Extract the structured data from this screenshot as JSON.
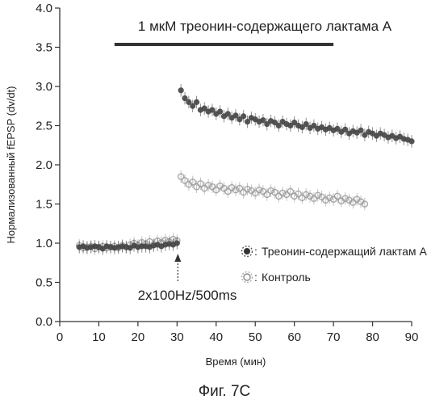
{
  "chart_data": {
    "type": "scatter",
    "title": "",
    "caption": "Фиг. 7C",
    "xlabel": "Время (мин)",
    "ylabel": "Нормализованный fEPSP (dv/dt)",
    "xlim": [
      0,
      90
    ],
    "ylim": [
      0.0,
      4.0
    ],
    "x_ticks": [
      0,
      10,
      20,
      30,
      40,
      50,
      60,
      70,
      80,
      90
    ],
    "y_ticks": [
      "0.0",
      "0.5",
      "1.0",
      "1.5",
      "2.0",
      "2.5",
      "3.0",
      "3.5",
      "4.0"
    ],
    "treatment_bar": {
      "label": "1 мкМ треонин-содержащего лактама А",
      "x_start": 14,
      "x_end": 70
    },
    "stimulus": {
      "label": "2x100Hz/500ms",
      "x": 30
    },
    "legend": [
      "Треонин-содержащий лактам А",
      "Контроль"
    ],
    "series": [
      {
        "name": "Треонин-содержащий лактам А",
        "marker": "filled",
        "color": "#444444",
        "x": [
          5,
          6,
          7,
          8,
          9,
          10,
          11,
          12,
          13,
          14,
          15,
          16,
          17,
          18,
          19,
          20,
          21,
          22,
          23,
          24,
          25,
          26,
          27,
          28,
          29,
          30,
          31,
          32,
          33,
          34,
          35,
          36,
          37,
          38,
          39,
          40,
          41,
          42,
          43,
          44,
          45,
          46,
          47,
          48,
          49,
          50,
          51,
          52,
          53,
          54,
          55,
          56,
          57,
          58,
          59,
          60,
          61,
          62,
          63,
          64,
          65,
          66,
          67,
          68,
          69,
          70,
          71,
          72,
          73,
          74,
          75,
          76,
          77,
          78,
          79,
          80,
          81,
          82,
          83,
          84,
          85,
          86,
          87,
          88,
          89,
          90
        ],
        "y": [
          0.95,
          0.96,
          0.94,
          0.95,
          0.96,
          0.95,
          0.93,
          0.96,
          0.95,
          0.94,
          0.95,
          0.96,
          0.95,
          0.94,
          0.97,
          0.95,
          0.96,
          0.96,
          0.95,
          0.97,
          0.98,
          0.96,
          0.98,
          0.99,
          0.98,
          1.0,
          2.95,
          2.85,
          2.8,
          2.75,
          2.8,
          2.7,
          2.72,
          2.68,
          2.7,
          2.65,
          2.68,
          2.62,
          2.65,
          2.6,
          2.63,
          2.58,
          2.62,
          2.55,
          2.6,
          2.58,
          2.55,
          2.57,
          2.52,
          2.56,
          2.54,
          2.5,
          2.55,
          2.52,
          2.5,
          2.54,
          2.5,
          2.48,
          2.52,
          2.47,
          2.5,
          2.46,
          2.48,
          2.45,
          2.47,
          2.44,
          2.46,
          2.42,
          2.45,
          2.4,
          2.43,
          2.41,
          2.44,
          2.38,
          2.42,
          2.4,
          2.37,
          2.4,
          2.38,
          2.35,
          2.37,
          2.34,
          2.36,
          2.33,
          2.32,
          2.3
        ]
      },
      {
        "name": "Контроль",
        "marker": "hollow",
        "color": "#9a9a9a",
        "x": [
          5,
          6,
          7,
          8,
          9,
          10,
          11,
          12,
          13,
          14,
          15,
          16,
          17,
          18,
          19,
          20,
          21,
          22,
          23,
          24,
          25,
          26,
          27,
          28,
          29,
          30,
          31,
          32,
          33,
          34,
          35,
          36,
          37,
          38,
          39,
          40,
          41,
          42,
          43,
          44,
          45,
          46,
          47,
          48,
          49,
          50,
          51,
          52,
          53,
          54,
          55,
          56,
          57,
          58,
          59,
          60,
          61,
          62,
          63,
          64,
          65,
          66,
          67,
          68,
          69,
          70,
          71,
          72,
          73,
          74,
          75,
          76,
          77,
          78
        ],
        "y": [
          0.97,
          0.94,
          0.95,
          0.96,
          0.93,
          0.95,
          0.96,
          0.94,
          0.95,
          0.96,
          0.94,
          0.97,
          0.95,
          0.98,
          1.0,
          0.97,
          1.01,
          0.99,
          1.02,
          0.98,
          1.03,
          1.01,
          1.04,
          1.02,
          1.05,
          1.03,
          1.85,
          1.8,
          1.75,
          1.78,
          1.72,
          1.76,
          1.7,
          1.74,
          1.72,
          1.68,
          1.73,
          1.7,
          1.66,
          1.71,
          1.68,
          1.7,
          1.65,
          1.69,
          1.67,
          1.64,
          1.68,
          1.66,
          1.62,
          1.67,
          1.65,
          1.6,
          1.64,
          1.62,
          1.66,
          1.6,
          1.63,
          1.58,
          1.62,
          1.6,
          1.57,
          1.61,
          1.59,
          1.55,
          1.58,
          1.56,
          1.6,
          1.54,
          1.57,
          1.55,
          1.52,
          1.56,
          1.53,
          1.5
        ]
      }
    ]
  }
}
